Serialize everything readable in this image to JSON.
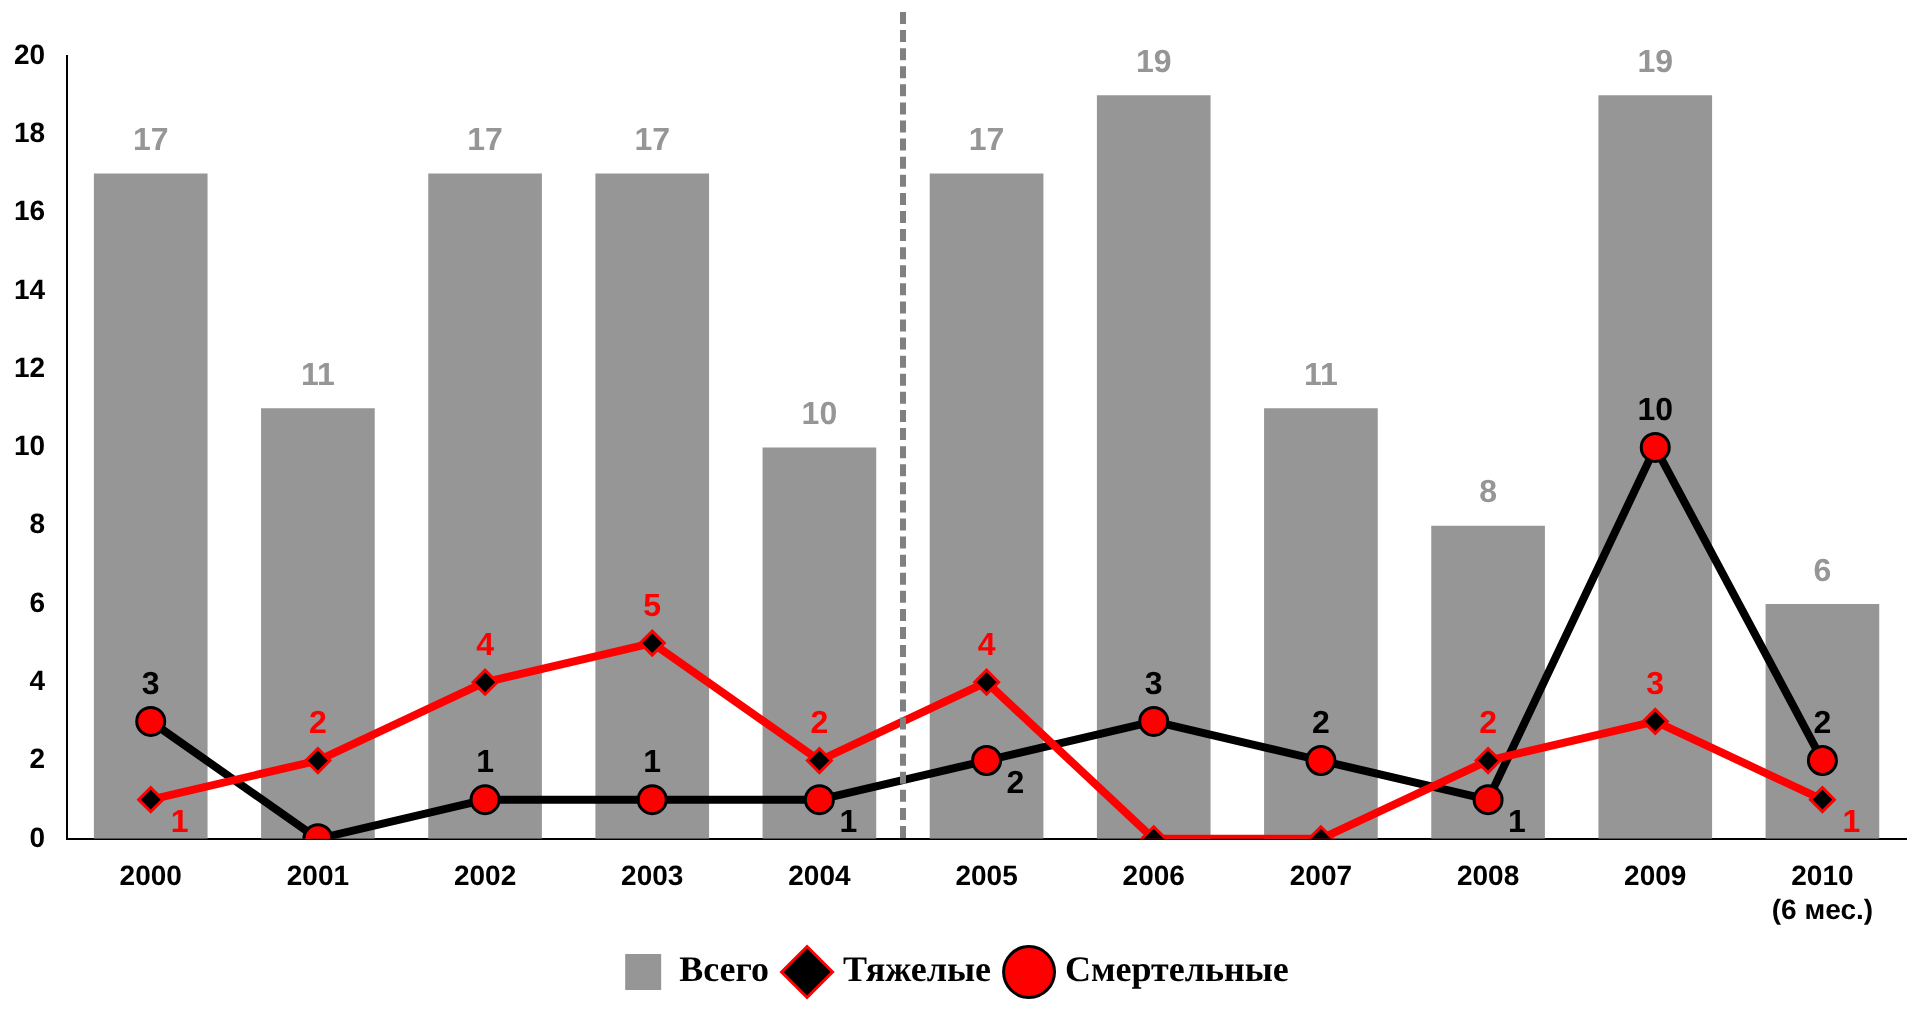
{
  "chart_data": {
    "type": "bar",
    "categories": [
      "2000",
      "2001",
      "2002",
      "2003",
      "2004",
      "2005",
      "2006",
      "2007",
      "2008",
      "2009",
      "2010 (6 мес.)"
    ],
    "series": [
      {
        "name": "Всего",
        "color": "#969696",
        "values": [
          17,
          11,
          17,
          17,
          10,
          17,
          19,
          11,
          8,
          19,
          6
        ]
      },
      {
        "name": "Тяжелые",
        "type": "line",
        "color": "#ff0000",
        "marker": "diamond",
        "values": [
          1,
          2,
          4,
          5,
          2,
          4,
          0,
          0,
          2,
          3,
          1
        ],
        "value_labels": [
          "1",
          "2",
          "4",
          "5",
          "2",
          "4",
          null,
          null,
          "2",
          "3",
          "1"
        ]
      },
      {
        "name": "Смертельные",
        "type": "line",
        "color": "#000000",
        "marker": "circle",
        "values": [
          3,
          0,
          1,
          1,
          1,
          2,
          3,
          2,
          1,
          10,
          2
        ],
        "value_labels": [
          "3",
          null,
          "1",
          "1",
          "1",
          "2",
          "3",
          "2",
          "1",
          "10",
          "2"
        ]
      }
    ],
    "ylim": [
      0,
      20
    ],
    "yticks": [
      0,
      2,
      4,
      6,
      8,
      10,
      12,
      14,
      16,
      18,
      20
    ],
    "grid": false,
    "legend": "bottom",
    "data_labels": true
  }
}
